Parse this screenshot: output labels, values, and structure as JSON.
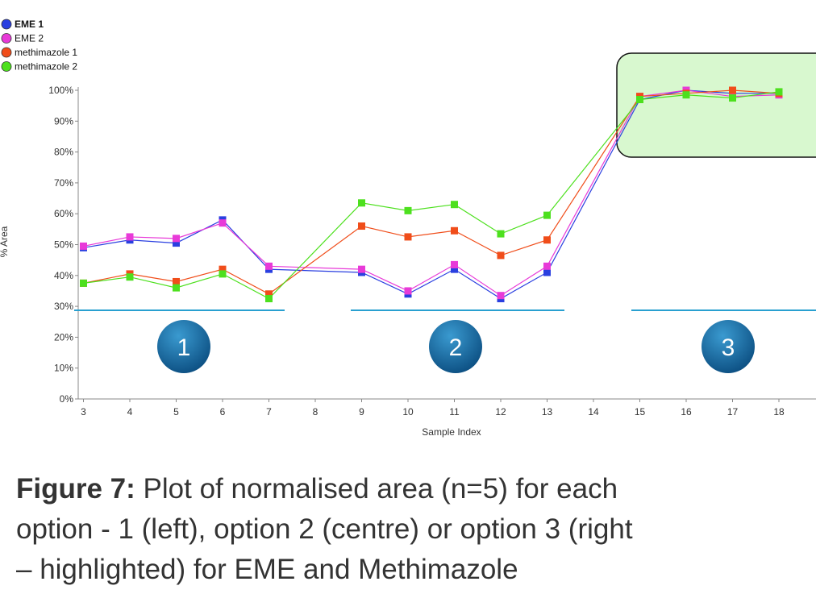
{
  "chart_data": {
    "type": "line",
    "x_label": "Sample Index",
    "y_label": "% Area",
    "x": [
      3,
      4,
      5,
      6,
      7,
      9,
      10,
      11,
      12,
      13,
      15,
      16,
      17,
      18
    ],
    "series": [
      {
        "name": "EME 1",
        "color": "#2a3fe0",
        "values": [
          49,
          51.5,
          50.5,
          58,
          42,
          41,
          34,
          42,
          32.5,
          41,
          97,
          100,
          99,
          99
        ]
      },
      {
        "name": "EME 2",
        "color": "#e83ad8",
        "values": [
          49.5,
          52.5,
          52,
          57,
          43,
          42,
          35,
          43.5,
          33.5,
          43,
          98,
          100,
          98,
          98.5
        ]
      },
      {
        "name": "methimazole 1",
        "color": "#f04d1a",
        "values": [
          37.5,
          40.5,
          38,
          42,
          34,
          56,
          52.5,
          54.5,
          46.5,
          51.5,
          98,
          99,
          100,
          99
        ]
      },
      {
        "name": "methimazole 2",
        "color": "#4de01e",
        "values": [
          37.5,
          39.5,
          36,
          40.5,
          32.5,
          63.5,
          61,
          63,
          53.5,
          59.5,
          97,
          98.5,
          97.5,
          99.5
        ]
      }
    ],
    "xlim": [
      2.8,
      18.8
    ],
    "xticks": [
      3,
      4,
      5,
      6,
      7,
      8,
      9,
      10,
      11,
      12,
      13,
      14,
      15,
      16,
      17,
      18
    ],
    "ylim": [
      0,
      100
    ],
    "yticks": [
      {
        "value": 0,
        "label": "0%"
      },
      {
        "value": 10,
        "label": "10%"
      },
      {
        "value": 20,
        "label": "20%"
      },
      {
        "value": 30,
        "label": "30%"
      },
      {
        "value": 40,
        "label": "40%"
      },
      {
        "value": 50,
        "label": "50%"
      },
      {
        "value": 60,
        "label": "60%"
      },
      {
        "value": 70,
        "label": "70%"
      },
      {
        "value": 80,
        "label": "80%"
      },
      {
        "value": 90,
        "label": "90%"
      },
      {
        "value": 100,
        "label": "100%"
      }
    ],
    "legend": "top-left",
    "options": [
      "1",
      "2",
      "3"
    ]
  },
  "caption": {
    "label": "Figure 7:",
    "lines": [
      "Plot of normalised area (n=5) for each",
      "option - 1 (left), option 2 (centre) or option 3 (right",
      "– highlighted) for EME and Methimazole"
    ]
  }
}
